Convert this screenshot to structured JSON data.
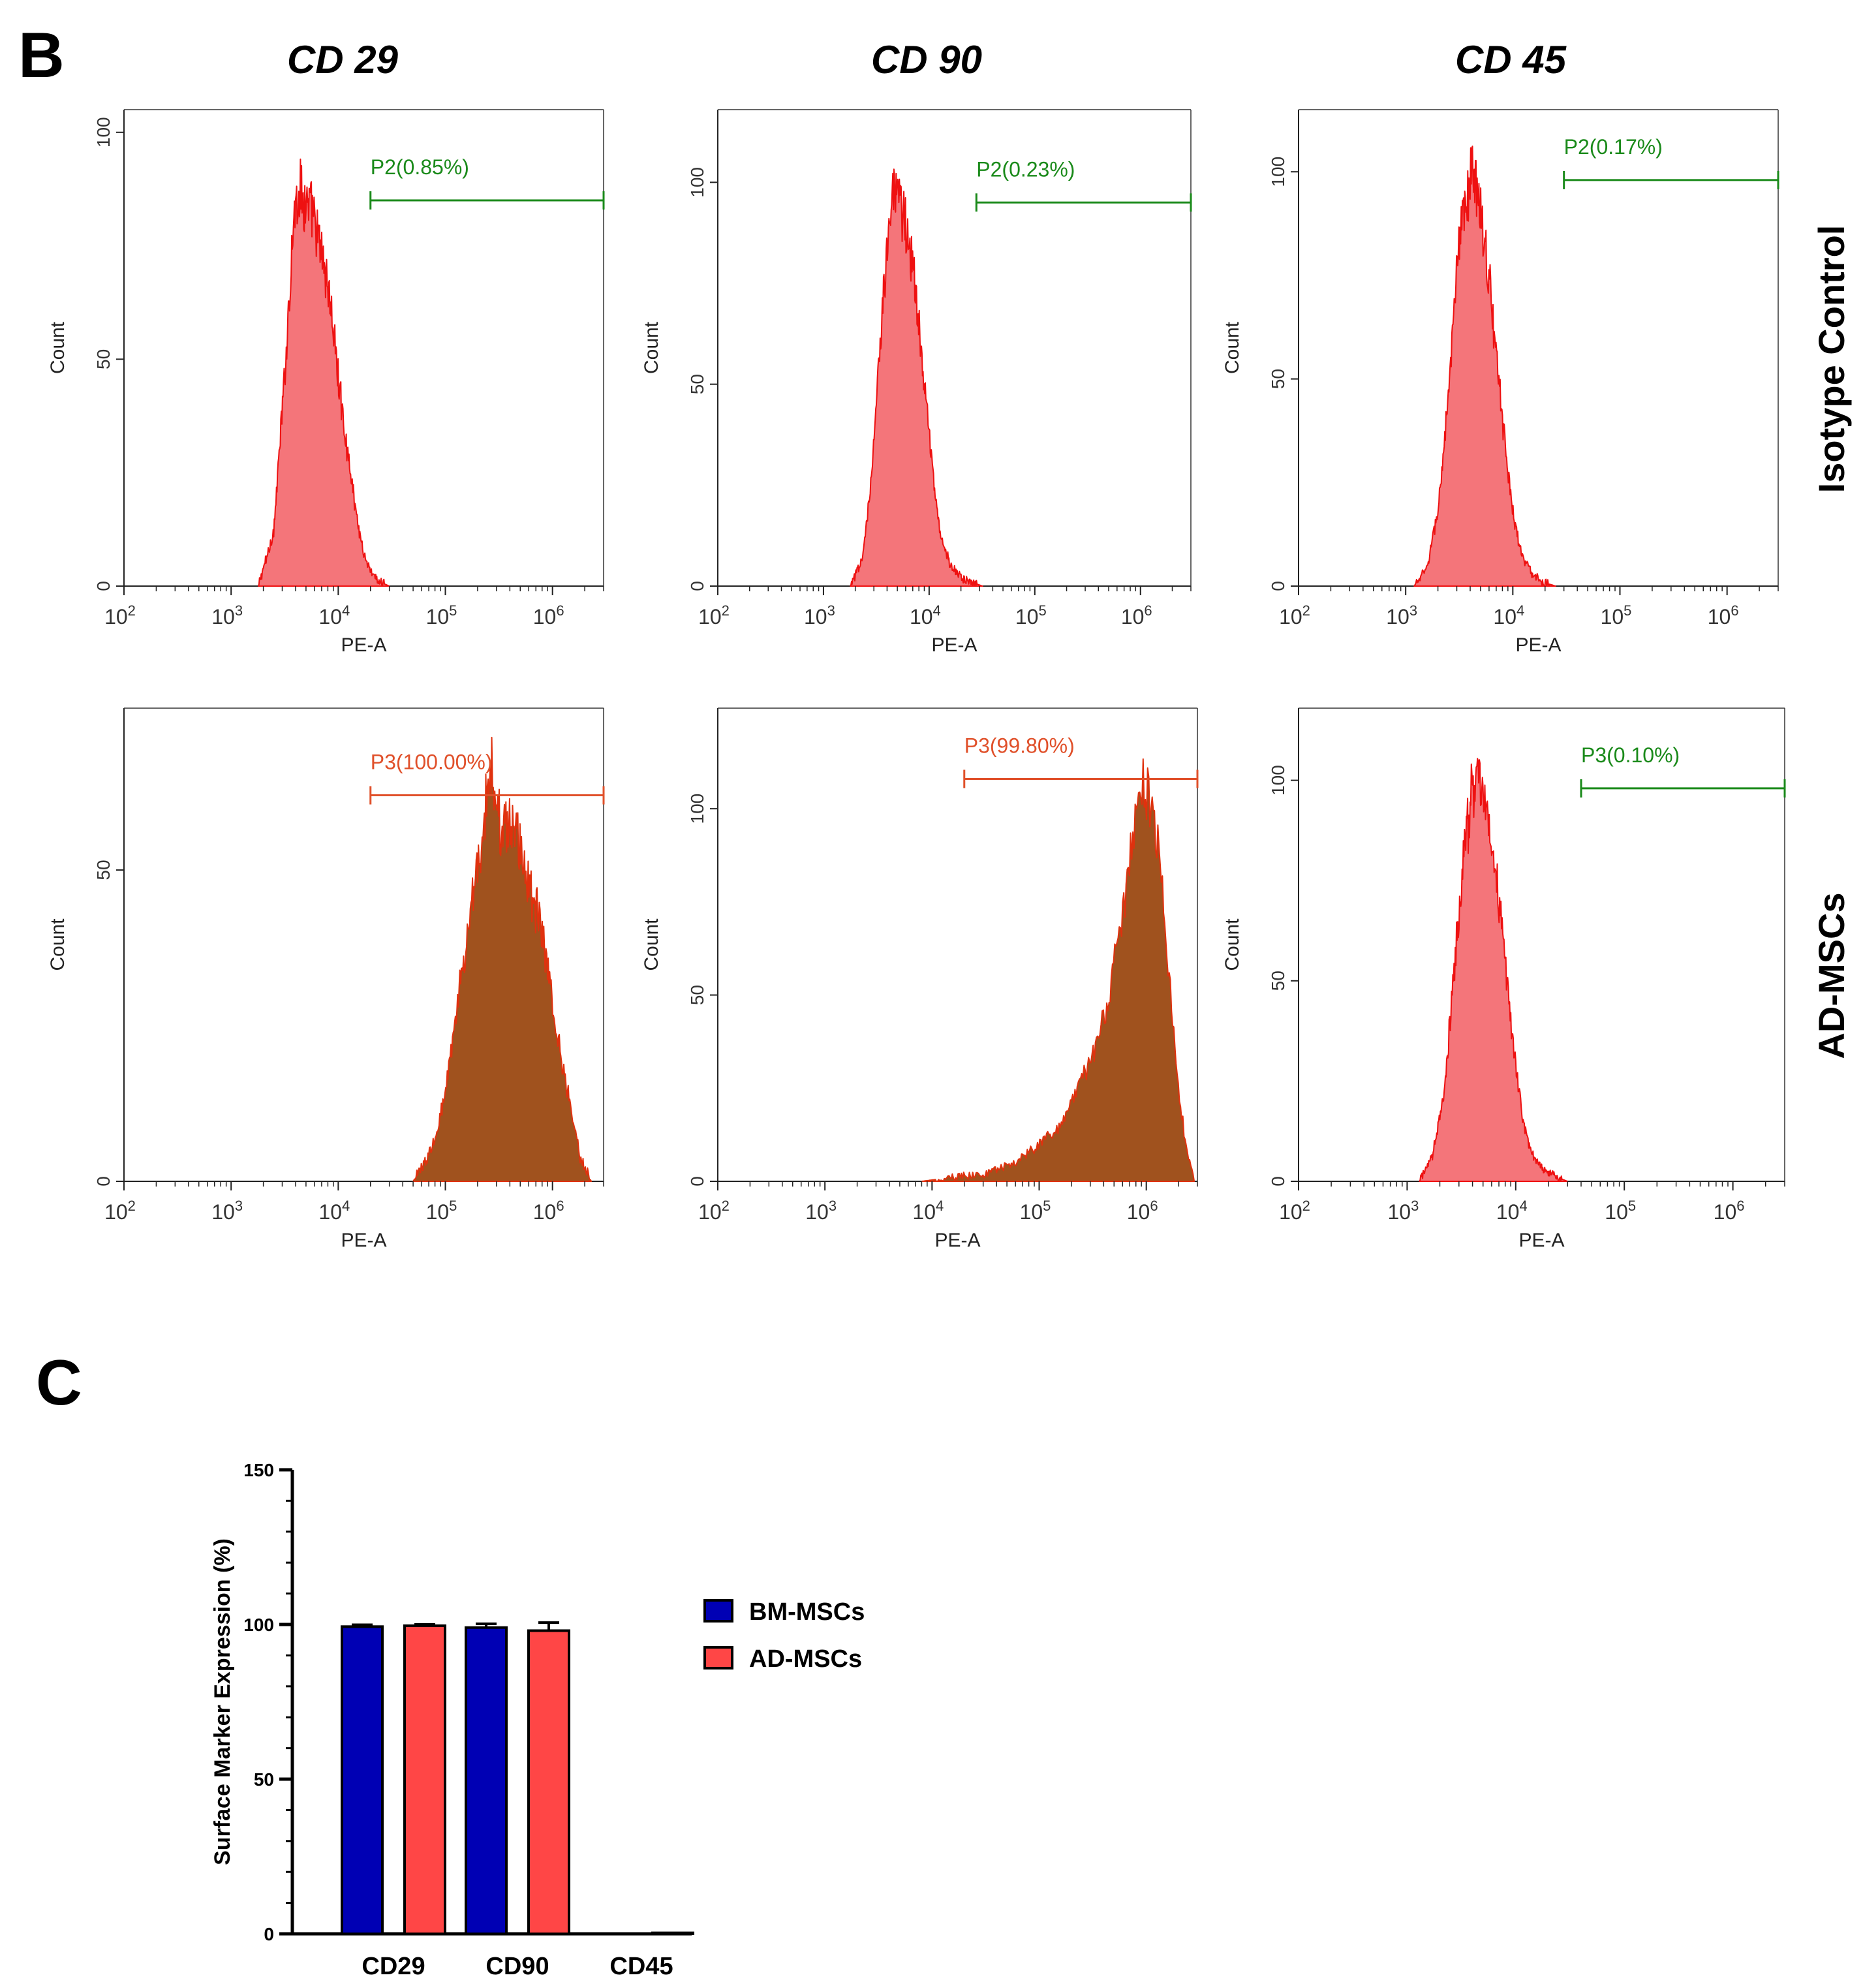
{
  "panel_b": {
    "letter": "B",
    "columns": [
      "CD 29",
      "CD 90",
      "CD 45"
    ],
    "rows": [
      "Isotype Control",
      "AD-MSCs"
    ]
  },
  "panel_c": {
    "letter": "C"
  },
  "chart_data": [
    {
      "type": "area",
      "id": "b-iso-cd29",
      "panel": "B",
      "row": "Isotype Control",
      "column": "CD 29",
      "xlabel": "PE-A",
      "ylabel": "Count",
      "xscale": "log",
      "xlim": [
        100,
        3000000
      ],
      "ylim": [
        0,
        105
      ],
      "yticks": [
        0,
        50,
        100
      ],
      "xtick_labels": [
        "10^2",
        "10^3",
        "10^4",
        "10^5",
        "10^6"
      ],
      "fill": "#F4757A",
      "edge": "#EE1111",
      "gate": {
        "label": "P2(0.85%)",
        "color": "#1A8A1A",
        "from": 20000,
        "to": 3000000,
        "y": 85
      },
      "histogram": {
        "x": [
          1800,
          2500,
          3200,
          3800,
          4300,
          5000,
          5800,
          6500,
          7300,
          8500,
          10000,
          11500,
          13000,
          15000,
          17000,
          20000,
          24000,
          30000
        ],
        "y": [
          0,
          12,
          48,
          80,
          88,
          84,
          82,
          76,
          72,
          62,
          46,
          34,
          25,
          15,
          8,
          3,
          1,
          0
        ]
      }
    },
    {
      "type": "area",
      "id": "b-iso-cd90",
      "panel": "B",
      "row": "Isotype Control",
      "column": "CD 90",
      "xlabel": "PE-A",
      "ylabel": "Count",
      "xscale": "log",
      "xlim": [
        100,
        3000000
      ],
      "ylim": [
        0,
        118
      ],
      "yticks": [
        0,
        50,
        100
      ],
      "xtick_labels": [
        "10^2",
        "10^3",
        "10^4",
        "10^5",
        "10^6"
      ],
      "fill": "#F4757A",
      "edge": "#EE1111",
      "gate": {
        "label": "P2(0.23%)",
        "color": "#1A8A1A",
        "from": 28000,
        "to": 3000000,
        "y": 95
      },
      "histogram": {
        "x": [
          1800,
          2300,
          2800,
          3400,
          4000,
          4600,
          5200,
          6000,
          7000,
          8000,
          9500,
          11000,
          13000,
          16000,
          20000,
          25000,
          32000
        ],
        "y": [
          0,
          6,
          24,
          58,
          86,
          97,
          94,
          90,
          80,
          64,
          44,
          26,
          12,
          5,
          2,
          1,
          0
        ]
      }
    },
    {
      "type": "area",
      "id": "b-iso-cd45",
      "panel": "B",
      "row": "Isotype Control",
      "column": "CD 45",
      "xlabel": "PE-A",
      "ylabel": "Count",
      "xscale": "log",
      "xlim": [
        100,
        3000000
      ],
      "ylim": [
        0,
        115
      ],
      "yticks": [
        0,
        50,
        100
      ],
      "xtick_labels": [
        "10^2",
        "10^3",
        "10^4",
        "10^5",
        "10^6"
      ],
      "fill": "#F4757A",
      "edge": "#EE1111",
      "gate": {
        "label": "P2(0.17%)",
        "color": "#1A8A1A",
        "from": 30000,
        "to": 3000000,
        "y": 98
      },
      "histogram": {
        "x": [
          1200,
          1600,
          2000,
          2500,
          3000,
          3600,
          4200,
          5000,
          6000,
          7000,
          8500,
          10000,
          12000,
          15000,
          19000,
          25000
        ],
        "y": [
          0,
          5,
          18,
          45,
          76,
          92,
          100,
          92,
          74,
          56,
          34,
          18,
          8,
          3,
          1,
          0
        ]
      }
    },
    {
      "type": "area",
      "id": "b-ad-cd29",
      "panel": "B",
      "row": "AD-MSCs",
      "column": "CD 29",
      "xlabel": "PE-A",
      "ylabel": "Count",
      "xscale": "log",
      "xlim": [
        100,
        3000000
      ],
      "ylim": [
        0,
        76
      ],
      "yticks": [
        0,
        50
      ],
      "xtick_labels": [
        "10^2",
        "10^3",
        "10^4",
        "10^5",
        "10^6"
      ],
      "fill": "#A0521E",
      "edge": "#E0310E",
      "gate": {
        "label": "P3(100.00%)",
        "color": "#E0502A",
        "from": 20000,
        "to": 3000000,
        "y": 62
      },
      "histogram": {
        "x": [
          50000,
          65000,
          80000,
          100000,
          120000,
          150000,
          190000,
          230000,
          270000,
          330000,
          400000,
          500000,
          600000,
          750000,
          900000,
          1100000,
          1400000,
          1800000,
          2300000
        ],
        "y": [
          0,
          3,
          7,
          14,
          24,
          36,
          48,
          58,
          68,
          56,
          58,
          54,
          48,
          42,
          34,
          24,
          14,
          4,
          0
        ]
      }
    },
    {
      "type": "area",
      "id": "b-ad-cd90",
      "panel": "B",
      "row": "AD-MSCs",
      "column": "CD 90",
      "xlabel": "PE-A",
      "ylabel": "Count",
      "xscale": "log",
      "xlim": [
        100,
        3000000
      ],
      "ylim": [
        0,
        127
      ],
      "yticks": [
        0,
        50,
        100
      ],
      "xtick_labels": [
        "10^2",
        "10^3",
        "10^4",
        "10^5",
        "10^6"
      ],
      "fill": "#A0521E",
      "edge": "#E0310E",
      "gate": {
        "label": "P3(99.80%)",
        "color": "#E0502A",
        "from": 20000,
        "to": 3000000,
        "y": 108
      },
      "histogram": {
        "x": [
          8000,
          15000,
          30000,
          60000,
          100000,
          150000,
          200000,
          280000,
          360000,
          450000,
          550000,
          650000,
          750000,
          850000,
          1000000,
          1200000,
          1450000,
          1700000,
          2000000,
          2400000,
          2800000
        ],
        "y": [
          0,
          1,
          2,
          5,
          10,
          14,
          22,
          30,
          38,
          50,
          64,
          80,
          96,
          104,
          106,
          98,
          76,
          48,
          24,
          8,
          0
        ]
      }
    },
    {
      "type": "area",
      "id": "b-ad-cd45",
      "panel": "B",
      "row": "AD-MSCs",
      "column": "CD 45",
      "xlabel": "PE-A",
      "ylabel": "Count",
      "xscale": "log",
      "xlim": [
        100,
        3000000
      ],
      "ylim": [
        0,
        118
      ],
      "yticks": [
        0,
        50,
        100
      ],
      "xtick_labels": [
        "10^2",
        "10^3",
        "10^4",
        "10^5",
        "10^6"
      ],
      "fill": "#F4757A",
      "edge": "#EE1111",
      "gate": {
        "label": "P3(0.10%)",
        "color": "#1A8A1A",
        "from": 40000,
        "to": 3000000,
        "y": 98
      },
      "histogram": {
        "x": [
          1300,
          1700,
          2200,
          2700,
          3300,
          3900,
          4500,
          5200,
          6000,
          7000,
          8200,
          9600,
          11500,
          14000,
          18000,
          24000,
          30000
        ],
        "y": [
          0,
          6,
          22,
          52,
          80,
          96,
          100,
          94,
          86,
          70,
          52,
          32,
          16,
          7,
          3,
          1,
          0
        ]
      }
    },
    {
      "type": "bar",
      "id": "c-surface",
      "panel": "C",
      "ylabel": "Surface Marker Expression (%)",
      "ylim": [
        0,
        150
      ],
      "yticks": [
        0,
        50,
        100,
        150
      ],
      "categories": [
        "CD29",
        "CD90",
        "CD45"
      ],
      "series": [
        {
          "name": "BM-MSCs",
          "color": "#0000B4",
          "values": [
            99.3,
            99.0,
            0.1
          ],
          "errors": [
            0.6,
            1.2,
            0.1
          ]
        },
        {
          "name": "AD-MSCs",
          "color": "#FF4646",
          "values": [
            99.6,
            98.0,
            0.3
          ],
          "errors": [
            0.4,
            2.6,
            0.2
          ]
        }
      ]
    }
  ]
}
